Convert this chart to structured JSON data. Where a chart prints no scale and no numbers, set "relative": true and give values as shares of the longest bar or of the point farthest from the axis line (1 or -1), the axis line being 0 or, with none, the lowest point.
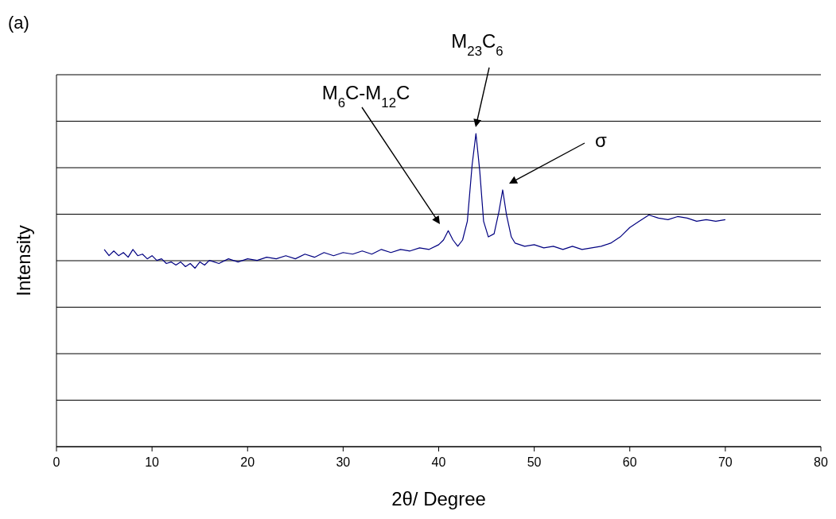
{
  "chart_data": {
    "type": "line",
    "relative": true,
    "xlabel": "2θ/ Degree",
    "ylabel": "Intensity",
    "xlim": [
      0,
      80
    ],
    "xticks": [
      0,
      10,
      20,
      30,
      40,
      50,
      60,
      70,
      80
    ],
    "grid": "y",
    "tick_labels": "x",
    "marker": "none",
    "line_style": "solid",
    "annotations": [
      "(a)",
      "M$_{6}$C-M$_{12}$C",
      "M$_{23}$C$_{6}$",
      "σ"
    ],
    "series": [
      {
        "color": "#000080",
        "x": [
          5,
          5.5,
          6,
          6.5,
          7,
          7.5,
          8,
          8.5,
          9,
          9.5,
          10,
          10.5,
          11,
          11.5,
          12,
          12.5,
          13,
          13.5,
          14,
          14.5,
          15,
          15.5,
          16,
          17,
          18,
          19,
          20,
          21,
          22,
          23,
          24,
          25,
          26,
          27,
          28,
          29,
          30,
          31,
          32,
          33,
          34,
          35,
          36,
          37,
          38,
          39,
          40,
          40.5,
          41,
          41.5,
          42,
          42.5,
          43,
          43.5,
          43.9,
          44.3,
          44.7,
          45.2,
          45.8,
          46.3,
          46.7,
          47.1,
          47.6,
          48,
          49,
          50,
          51,
          52,
          53,
          54,
          55,
          56,
          57,
          58,
          59,
          60,
          61,
          62,
          63,
          64,
          65,
          66,
          67,
          68,
          69,
          70
        ],
        "values": [
          0.63,
          0.61,
          0.625,
          0.61,
          0.62,
          0.605,
          0.63,
          0.61,
          0.615,
          0.6,
          0.61,
          0.595,
          0.6,
          0.585,
          0.59,
          0.58,
          0.59,
          0.575,
          0.585,
          0.57,
          0.59,
          0.58,
          0.595,
          0.585,
          0.6,
          0.59,
          0.6,
          0.595,
          0.605,
          0.6,
          0.61,
          0.6,
          0.615,
          0.605,
          0.62,
          0.61,
          0.62,
          0.615,
          0.625,
          0.615,
          0.63,
          0.62,
          0.63,
          0.625,
          0.635,
          0.63,
          0.645,
          0.66,
          0.69,
          0.66,
          0.64,
          0.66,
          0.72,
          0.9,
          1.0,
          0.88,
          0.72,
          0.67,
          0.68,
          0.75,
          0.82,
          0.74,
          0.67,
          0.65,
          0.64,
          0.645,
          0.635,
          0.64,
          0.63,
          0.64,
          0.63,
          0.635,
          0.64,
          0.65,
          0.67,
          0.7,
          0.72,
          0.74,
          0.73,
          0.725,
          0.735,
          0.73,
          0.72,
          0.725,
          0.72,
          0.725
        ]
      }
    ]
  }
}
